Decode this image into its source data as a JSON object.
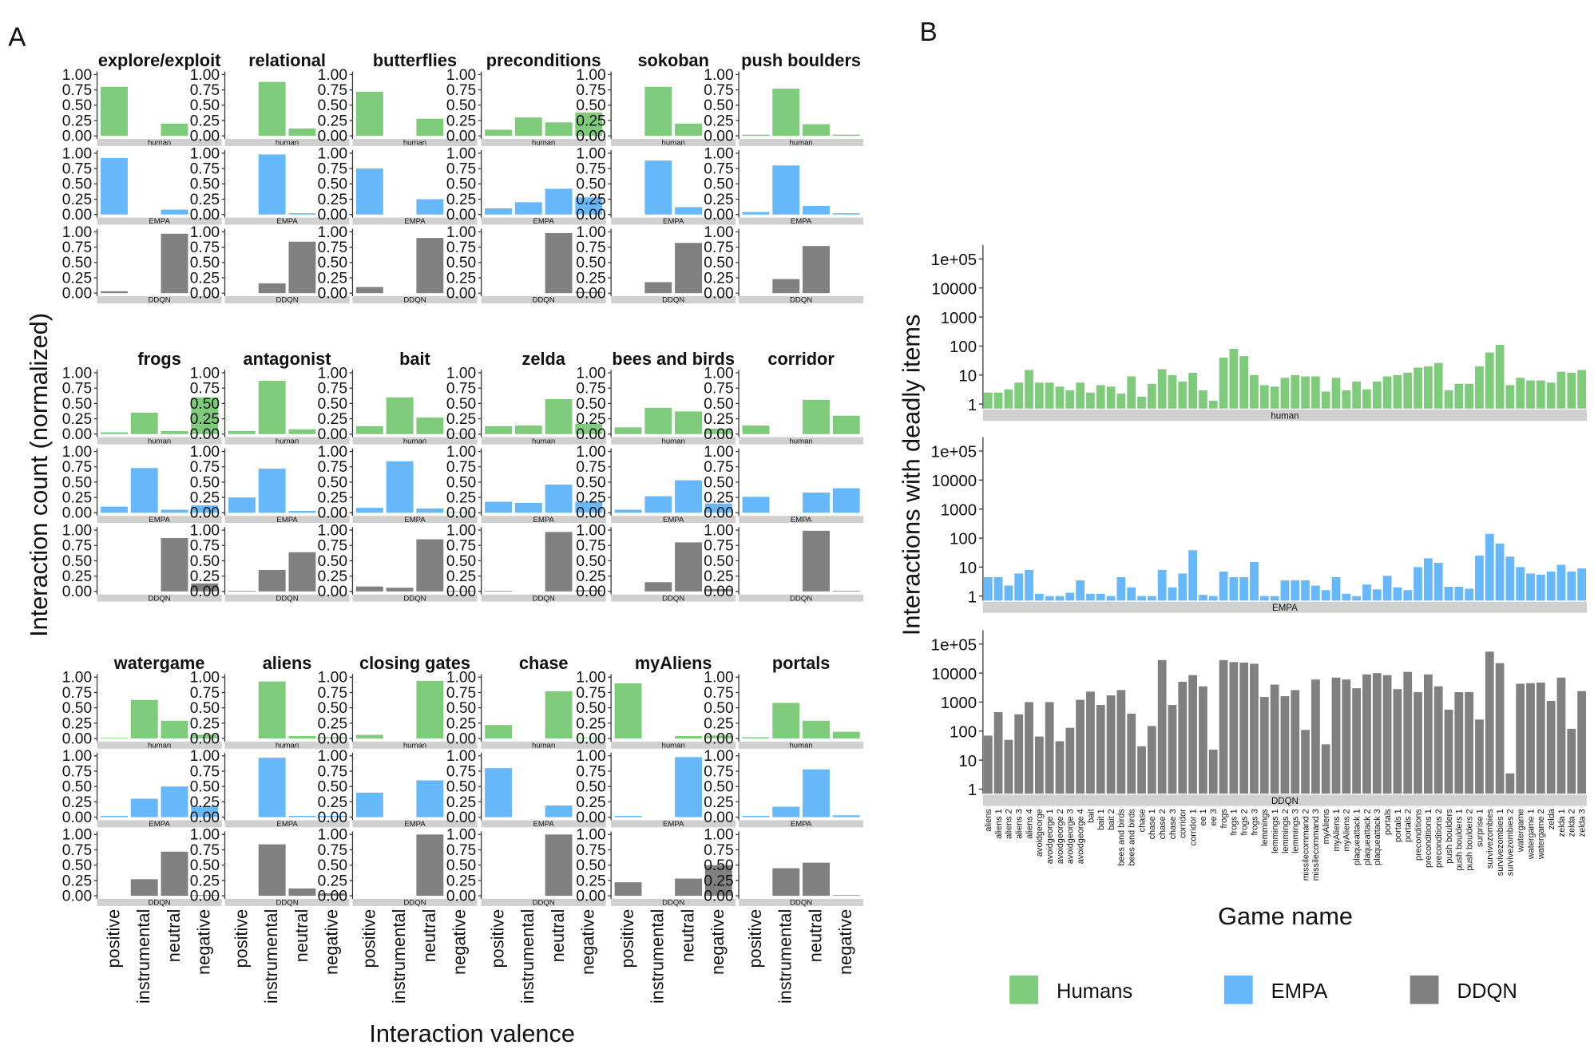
{
  "chart_data": [
    {
      "type": "bar",
      "panel_label": "A",
      "ylabel": "Interaction count (normalized)",
      "xlabel": "Interaction valence",
      "categories": [
        "positive",
        "instrumental",
        "neutral",
        "negative"
      ],
      "ylim": [
        0,
        1
      ],
      "yticks": [
        {
          "value": 0,
          "label": "0.00"
        },
        0.25,
        {
          "value": 0.5,
          "label": "0.50"
        },
        0.75,
        {
          "value": 1,
          "label": "1.00"
        }
      ],
      "colors": [
        "#7fcb7c",
        "#66b8fb",
        "#808080"
      ],
      "facets": [
        {
          "title": "explore/exploit",
          "series": [
            {
              "name": "human",
              "values": [
                0.8,
                0,
                0.2,
                0
              ]
            },
            {
              "name": "EMPA",
              "values": [
                0.92,
                0,
                0.08,
                0
              ]
            },
            {
              "name": "DDQN",
              "values": [
                0.03,
                0,
                0.97,
                0
              ]
            }
          ]
        },
        {
          "title": "relational",
          "series": [
            {
              "name": "human",
              "values": [
                0,
                0.88,
                0.12,
                0
              ]
            },
            {
              "name": "EMPA",
              "values": [
                0,
                0.98,
                0.02,
                0
              ]
            },
            {
              "name": "DDQN",
              "values": [
                0,
                0.16,
                0.84,
                0
              ]
            }
          ]
        },
        {
          "title": "butterflies",
          "series": [
            {
              "name": "human",
              "values": [
                0.72,
                0,
                0.28,
                0
              ]
            },
            {
              "name": "EMPA",
              "values": [
                0.75,
                0,
                0.25,
                0
              ]
            },
            {
              "name": "DDQN",
              "values": [
                0.1,
                0,
                0.9,
                0
              ]
            }
          ]
        },
        {
          "title": "preconditions",
          "series": [
            {
              "name": "human",
              "values": [
                0.1,
                0.3,
                0.22,
                0.38
              ]
            },
            {
              "name": "EMPA",
              "values": [
                0.1,
                0.2,
                0.42,
                0.28
              ]
            },
            {
              "name": "DDQN",
              "values": [
                0,
                0,
                0.98,
                0.02
              ]
            }
          ]
        },
        {
          "title": "sokoban",
          "series": [
            {
              "name": "human",
              "values": [
                0,
                0.8,
                0.2,
                0
              ]
            },
            {
              "name": "EMPA",
              "values": [
                0,
                0.88,
                0.12,
                0
              ]
            },
            {
              "name": "DDQN",
              "values": [
                0,
                0.18,
                0.82,
                0
              ]
            }
          ]
        },
        {
          "title": "push boulders",
          "series": [
            {
              "name": "human",
              "values": [
                0.02,
                0.77,
                0.19,
                0.02
              ]
            },
            {
              "name": "EMPA",
              "values": [
                0.04,
                0.8,
                0.14,
                0.02
              ]
            },
            {
              "name": "DDQN",
              "values": [
                0,
                0.23,
                0.77,
                0
              ]
            }
          ]
        },
        {
          "title": "frogs",
          "series": [
            {
              "name": "human",
              "values": [
                0.03,
                0.35,
                0.05,
                0.6
              ]
            },
            {
              "name": "EMPA",
              "values": [
                0.1,
                0.73,
                0.05,
                0.12
              ]
            },
            {
              "name": "DDQN",
              "values": [
                0,
                0,
                0.87,
                0.13
              ]
            }
          ]
        },
        {
          "title": "antagonist",
          "series": [
            {
              "name": "human",
              "values": [
                0.05,
                0.87,
                0.08,
                0
              ]
            },
            {
              "name": "EMPA",
              "values": [
                0.25,
                0.72,
                0.03,
                0
              ]
            },
            {
              "name": "DDQN",
              "values": [
                0.01,
                0.35,
                0.64,
                0
              ]
            }
          ]
        },
        {
          "title": "bait",
          "series": [
            {
              "name": "human",
              "values": [
                0.13,
                0.6,
                0.27,
                0.01
              ]
            },
            {
              "name": "EMPA",
              "values": [
                0.08,
                0.84,
                0.07,
                0.01
              ]
            },
            {
              "name": "DDQN",
              "values": [
                0.08,
                0.06,
                0.85,
                0.01
              ]
            }
          ]
        },
        {
          "title": "zelda",
          "series": [
            {
              "name": "human",
              "values": [
                0.13,
                0.14,
                0.57,
                0.17
              ]
            },
            {
              "name": "EMPA",
              "values": [
                0.18,
                0.16,
                0.46,
                0.18
              ]
            },
            {
              "name": "DDQN",
              "values": [
                0.01,
                0,
                0.97,
                0.02
              ]
            }
          ]
        },
        {
          "title": "bees and birds",
          "series": [
            {
              "name": "human",
              "values": [
                0.11,
                0.43,
                0.37,
                0.09
              ]
            },
            {
              "name": "EMPA",
              "values": [
                0.05,
                0.27,
                0.53,
                0.15
              ]
            },
            {
              "name": "DDQN",
              "values": [
                0,
                0.15,
                0.8,
                0.04
              ]
            }
          ]
        },
        {
          "title": "corridor",
          "series": [
            {
              "name": "human",
              "values": [
                0.14,
                0,
                0.56,
                0.3
              ]
            },
            {
              "name": "EMPA",
              "values": [
                0.26,
                0,
                0.33,
                0.4
              ]
            },
            {
              "name": "DDQN",
              "values": [
                0,
                0,
                0.99,
                0.01
              ]
            }
          ]
        },
        {
          "title": "watergame",
          "series": [
            {
              "name": "human",
              "values": [
                0.01,
                0.63,
                0.29,
                0.06
              ]
            },
            {
              "name": "EMPA",
              "values": [
                0.02,
                0.3,
                0.5,
                0.18
              ]
            },
            {
              "name": "DDQN",
              "values": [
                0,
                0.27,
                0.72,
                0.01
              ]
            }
          ]
        },
        {
          "title": "aliens",
          "series": [
            {
              "name": "human",
              "values": [
                0,
                0.93,
                0.04,
                0.02
              ]
            },
            {
              "name": "EMPA",
              "values": [
                0,
                0.97,
                0.02,
                0.02
              ]
            },
            {
              "name": "DDQN",
              "values": [
                0,
                0.84,
                0.12,
                0.04
              ]
            }
          ]
        },
        {
          "title": "closing gates",
          "series": [
            {
              "name": "human",
              "values": [
                0.06,
                0,
                0.94,
                0
              ]
            },
            {
              "name": "EMPA",
              "values": [
                0.4,
                0,
                0.6,
                0
              ]
            },
            {
              "name": "DDQN",
              "values": [
                0,
                0,
                1,
                0
              ]
            }
          ]
        },
        {
          "title": "chase",
          "series": [
            {
              "name": "human",
              "values": [
                0.22,
                0,
                0.77,
                0.01
              ]
            },
            {
              "name": "EMPA",
              "values": [
                0.8,
                0,
                0.19,
                0
              ]
            },
            {
              "name": "DDQN",
              "values": [
                0,
                0,
                1,
                0
              ]
            }
          ]
        },
        {
          "title": "myAliens",
          "series": [
            {
              "name": "human",
              "values": [
                0.9,
                0,
                0.04,
                0.05
              ]
            },
            {
              "name": "EMPA",
              "values": [
                0.02,
                0,
                0.98,
                0
              ]
            },
            {
              "name": "DDQN",
              "values": [
                0.22,
                0,
                0.28,
                0.5
              ]
            }
          ]
        },
        {
          "title": "portals",
          "series": [
            {
              "name": "human",
              "values": [
                0.02,
                0.58,
                0.29,
                0.11
              ]
            },
            {
              "name": "EMPA",
              "values": [
                0.02,
                0.17,
                0.78,
                0.03
              ]
            },
            {
              "name": "DDQN",
              "values": [
                0,
                0.45,
                0.54,
                0.01
              ]
            }
          ]
        }
      ]
    },
    {
      "type": "bar",
      "panel_label": "B",
      "ylabel": "Interactions with deadly items",
      "xlabel": "Game name",
      "log_scale": true,
      "ylim": [
        0.7,
        300000
      ],
      "yticks": [
        1,
        10,
        100,
        1000,
        10000,
        {
          "value": 100000,
          "label": "1e+05"
        }
      ],
      "categories": [
        "aliens",
        "aliens 1",
        "aliens 2",
        "aliens 3",
        "aliens 4",
        "avoidgeorge",
        "avoidgeorge 1",
        "avoidgeorge 2",
        "avoidgeorge 3",
        "avoidgeorge 4",
        "bait",
        "bait 1",
        "bait 2",
        "bees and birds",
        "bees and birds",
        "chase",
        "chase 1",
        "chase 2",
        "chase 3",
        "corridor",
        "corridor 1",
        "ee 1",
        "ee 3",
        "frogs",
        "frogs 1",
        "frogs 2",
        "frogs 3",
        "lemmings",
        "lemmings 1",
        "lemmings 2",
        "lemmings 3",
        "missilecommand 2",
        "missilecommand 3",
        "myAliens",
        "myAliens 1",
        "myAliens 2",
        "plaqueattack 1",
        "plaqueattack 2",
        "plaqueattack 3",
        "portals",
        "portals 1",
        "portals 2",
        "preconditions",
        "preconditions 1",
        "preconditions 2",
        "push boulders",
        "push boulders 1",
        "push boulders 2",
        "surprise 1",
        "survivezombies",
        "survivezombies 1",
        "survivezombies 2",
        "watergame",
        "watergame 1",
        "watergame 2",
        "zelda",
        "zelda 1",
        "zelda 2",
        "zelda 3"
      ],
      "series": [
        {
          "name": "human",
          "color": "#7fcb7c",
          "values": [
            2.5,
            2.5,
            3.2,
            5.5,
            15,
            5.5,
            5.5,
            4,
            3,
            5.5,
            2.5,
            4.5,
            4,
            2.3,
            9,
            1.8,
            5,
            16,
            10,
            6,
            12,
            3,
            1.3,
            40,
            80,
            45,
            10,
            4.5,
            4,
            8,
            10,
            9,
            9,
            2.7,
            8,
            3,
            6,
            3.2,
            6,
            9,
            10,
            12,
            18,
            20,
            26,
            3,
            5,
            5,
            20,
            60,
            110,
            4.5,
            8,
            6.5,
            6.5,
            5.5,
            13,
            12,
            15
          ]
        },
        {
          "name": "EMPA",
          "color": "#66b8fb",
          "values": [
            4.5,
            4.5,
            2.3,
            6,
            8,
            1.2,
            1,
            1,
            1.3,
            3.5,
            1.2,
            1.2,
            1,
            4.5,
            2,
            1,
            1,
            8,
            2,
            6,
            38,
            1.1,
            1,
            7,
            4.5,
            4.5,
            15,
            1,
            1,
            3.5,
            3.5,
            3.5,
            2.3,
            1.6,
            4.5,
            1.2,
            1,
            2.5,
            1.7,
            5,
            2,
            1.6,
            10,
            20,
            14,
            2.1,
            2.1,
            1.8,
            25,
            140,
            65,
            23,
            10,
            6,
            5.5,
            7,
            12,
            7,
            9
          ]
        },
        {
          "name": "DDQN",
          "color": "#808080",
          "values": [
            70,
            450,
            50,
            380,
            1000,
            65,
            1000,
            45,
            130,
            1200,
            2300,
            800,
            1700,
            2600,
            400,
            30,
            150,
            28000,
            800,
            5000,
            8500,
            3500,
            23,
            28000,
            24000,
            23000,
            21000,
            1500,
            4000,
            1600,
            2600,
            110,
            6000,
            35,
            7000,
            6000,
            3000,
            9000,
            10000,
            8500,
            2800,
            11000,
            2200,
            9000,
            3500,
            550,
            2200,
            2200,
            250,
            55000,
            22000,
            3.5,
            4300,
            4500,
            4700,
            1100,
            7000,
            120,
            2400
          ]
        }
      ],
      "legend": [
        "Humans",
        "EMPA",
        "DDQN"
      ]
    }
  ]
}
